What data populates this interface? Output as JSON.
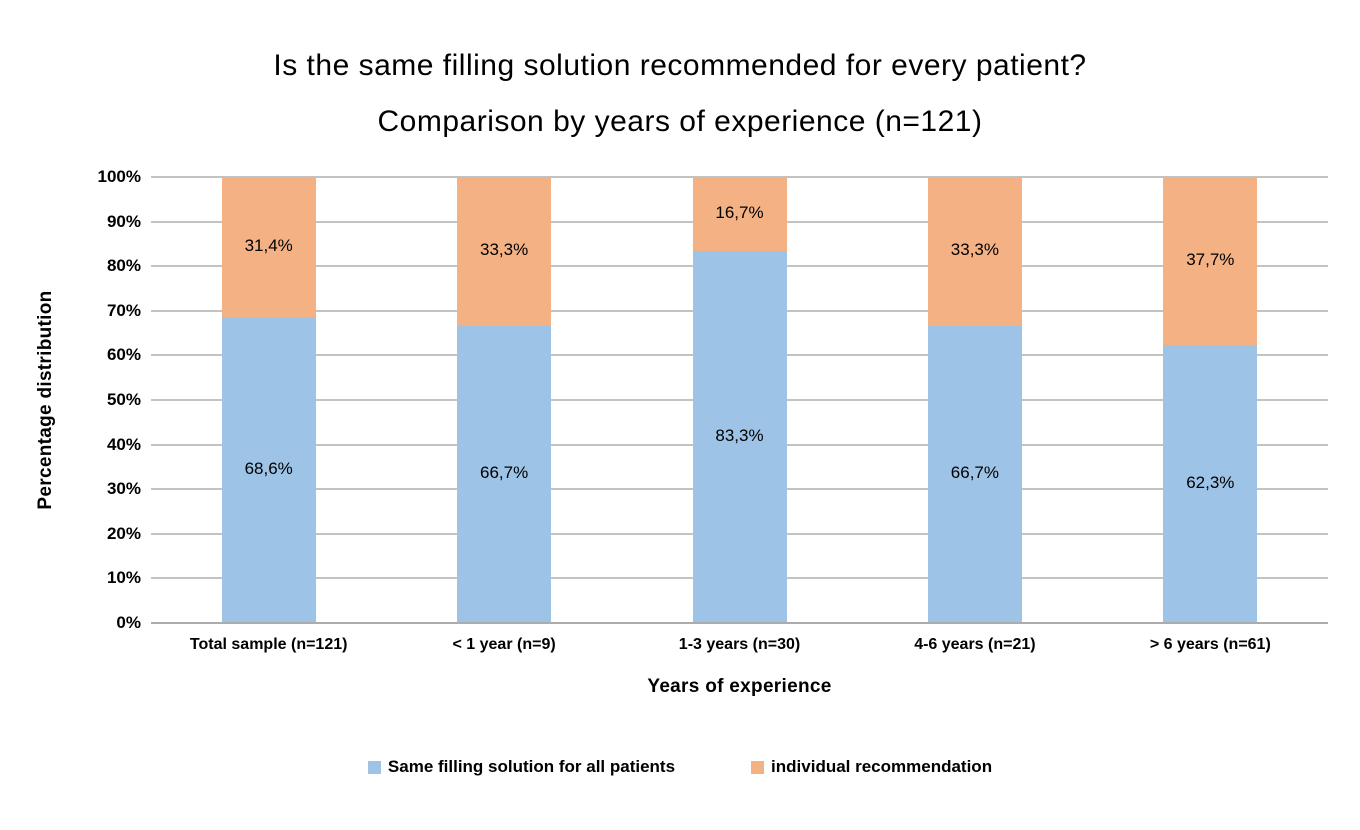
{
  "title": {
    "line1": "Is the same filling solution recommended for every patient?",
    "line2": "Comparison by years of experience (n=121)"
  },
  "chart_data": {
    "type": "bar",
    "stacked": true,
    "title": "Is the same filling solution recommended for every patient? Comparison by years of experience (n=121)",
    "xlabel": "Years of experience",
    "ylabel": "Percentage distribution",
    "categories": [
      "Total sample (n=121)",
      "< 1 year (n=9)",
      "1-3 years (n=30)",
      "4-6 years (n=21)",
      "> 6 years (n=61)"
    ],
    "series": [
      {
        "name": "Same filling solution for all patients",
        "color": "#9DC3E6",
        "values": [
          68.6,
          66.7,
          83.3,
          66.7,
          62.3
        ],
        "labels": [
          "68,6%",
          "66,7%",
          "83,3%",
          "66,7%",
          "62,3%"
        ]
      },
      {
        "name": "individual recommendation",
        "color": "#F4B183",
        "values": [
          31.4,
          33.3,
          16.7,
          33.3,
          37.7
        ],
        "labels": [
          "31,4%",
          "33,3%",
          "16,7%",
          "33,3%",
          "37,7%"
        ]
      }
    ],
    "ylim": [
      0,
      100
    ],
    "yticks": [
      "0%",
      "10%",
      "20%",
      "30%",
      "40%",
      "50%",
      "60%",
      "70%",
      "80%",
      "90%",
      "100%"
    ],
    "grid": true,
    "gridline_color": "#C3C3C3",
    "axis_line_color": "#ACACAC",
    "legend_position": "bottom"
  }
}
